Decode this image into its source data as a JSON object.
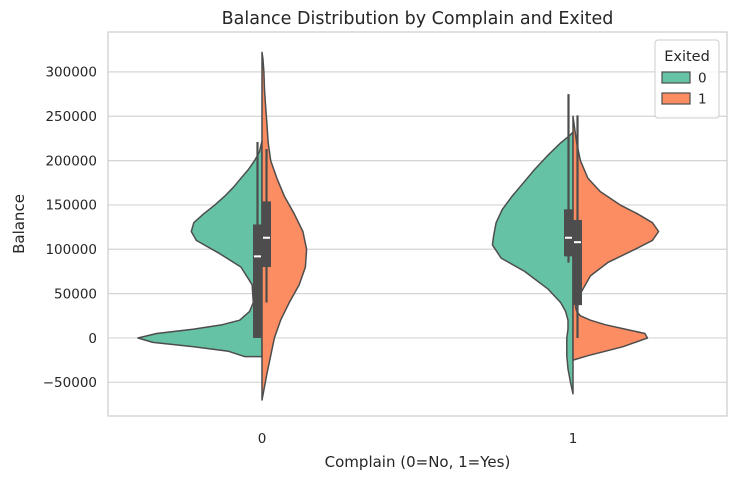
{
  "chart_data": {
    "type": "violin",
    "title": "Balance Distribution by Complain and Exited",
    "xlabel": "Complain (0=No, 1=Yes)",
    "ylabel": "Balance",
    "categories": [
      "0",
      "1"
    ],
    "ylim": [
      -88000,
      345000
    ],
    "yticks": [
      -50000,
      0,
      50000,
      100000,
      150000,
      200000,
      250000,
      300000
    ],
    "ytick_labels": [
      "−50000",
      "0",
      "50000",
      "100000",
      "150000",
      "200000",
      "250000",
      "300000"
    ],
    "grid": "y",
    "split": true,
    "legend": {
      "title": "Exited",
      "placement": "top-right",
      "entries": [
        "0",
        "1"
      ]
    },
    "series": [
      {
        "name": "0",
        "side": "left",
        "color": "#66c2a5",
        "violins": [
          {
            "category": "0",
            "profile": [
              [
                -21000,
                0.14
              ],
              [
                -15000,
                0.27
              ],
              [
                -10000,
                0.55
              ],
              [
                -5000,
                0.88
              ],
              [
                0,
                1.0
              ],
              [
                5000,
                0.85
              ],
              [
                10000,
                0.55
              ],
              [
                15000,
                0.32
              ],
              [
                20000,
                0.18
              ],
              [
                30000,
                0.1
              ],
              [
                40000,
                0.07
              ],
              [
                60000,
                0.08
              ],
              [
                80000,
                0.17
              ],
              [
                95000,
                0.34
              ],
              [
                110000,
                0.53
              ],
              [
                120000,
                0.57
              ],
              [
                130000,
                0.55
              ],
              [
                140000,
                0.47
              ],
              [
                150000,
                0.38
              ],
              [
                160000,
                0.3
              ],
              [
                170000,
                0.23
              ],
              [
                180000,
                0.17
              ],
              [
                190000,
                0.11
              ],
              [
                200000,
                0.06
              ],
              [
                210000,
                0.02
              ],
              [
                222000,
                0.0
              ]
            ],
            "box": {
              "q1": 0,
              "median": 92000,
              "q3": 128000,
              "whisker_low": 0,
              "whisker_high": 221000
            }
          },
          {
            "category": "1",
            "profile": [
              [
                -63000,
                0.0
              ],
              [
                -50000,
                0.02
              ],
              [
                -35000,
                0.04
              ],
              [
                -20000,
                0.05
              ],
              [
                -10000,
                0.05
              ],
              [
                0,
                0.05
              ],
              [
                10000,
                0.04
              ],
              [
                20000,
                0.04
              ],
              [
                30000,
                0.06
              ],
              [
                40000,
                0.1
              ],
              [
                55000,
                0.2
              ],
              [
                75000,
                0.39
              ],
              [
                90000,
                0.58
              ],
              [
                105000,
                0.65
              ],
              [
                115000,
                0.64
              ],
              [
                130000,
                0.62
              ],
              [
                145000,
                0.57
              ],
              [
                160000,
                0.49
              ],
              [
                175000,
                0.4
              ],
              [
                190000,
                0.31
              ],
              [
                205000,
                0.21
              ],
              [
                220000,
                0.1
              ],
              [
                228000,
                0.03
              ],
              [
                232000,
                0.0
              ]
            ],
            "box": {
              "q1": 92000,
              "median": 113000,
              "q3": 145000,
              "whisker_low": 85000,
              "whisker_high": 275000
            }
          }
        ]
      },
      {
        "name": "1",
        "side": "right",
        "color": "#fc8d62",
        "violins": [
          {
            "category": "0",
            "profile": [
              [
                -70000,
                0.0
              ],
              [
                -55000,
                0.02
              ],
              [
                -40000,
                0.04
              ],
              [
                -20000,
                0.07
              ],
              [
                0,
                0.1
              ],
              [
                20000,
                0.15
              ],
              [
                40000,
                0.22
              ],
              [
                60000,
                0.3
              ],
              [
                80000,
                0.35
              ],
              [
                100000,
                0.36
              ],
              [
                120000,
                0.33
              ],
              [
                140000,
                0.26
              ],
              [
                160000,
                0.18
              ],
              [
                180000,
                0.12
              ],
              [
                200000,
                0.07
              ],
              [
                220000,
                0.05
              ],
              [
                240000,
                0.04
              ],
              [
                260000,
                0.03
              ],
              [
                280000,
                0.02
              ],
              [
                300000,
                0.015
              ],
              [
                315000,
                0.007
              ],
              [
                322000,
                0.0
              ]
            ],
            "box": {
              "q1": 80000,
              "median": 113000,
              "q3": 154000,
              "whisker_low": 40000,
              "whisker_high": 213000
            }
          },
          {
            "category": "1",
            "profile": [
              [
                -25000,
                0.0
              ],
              [
                -20000,
                0.12
              ],
              [
                -10000,
                0.4
              ],
              [
                0,
                0.6
              ],
              [
                5000,
                0.58
              ],
              [
                10000,
                0.42
              ],
              [
                15000,
                0.26
              ],
              [
                20000,
                0.14
              ],
              [
                25000,
                0.06
              ],
              [
                30000,
                0.03
              ],
              [
                35000,
                0.02
              ],
              [
                45000,
                0.04
              ],
              [
                55000,
                0.08
              ],
              [
                70000,
                0.14
              ],
              [
                85000,
                0.28
              ],
              [
                100000,
                0.5
              ],
              [
                110000,
                0.64
              ],
              [
                120000,
                0.69
              ],
              [
                130000,
                0.64
              ],
              [
                140000,
                0.52
              ],
              [
                150000,
                0.38
              ],
              [
                165000,
                0.22
              ],
              [
                180000,
                0.12
              ],
              [
                200000,
                0.06
              ],
              [
                220000,
                0.03
              ],
              [
                240000,
                0.01
              ],
              [
                250000,
                0.0
              ]
            ],
            "box": {
              "q1": 37000,
              "median": 108000,
              "q3": 133000,
              "whisker_low": 0,
              "whisker_high": 251000
            }
          }
        ]
      }
    ]
  }
}
